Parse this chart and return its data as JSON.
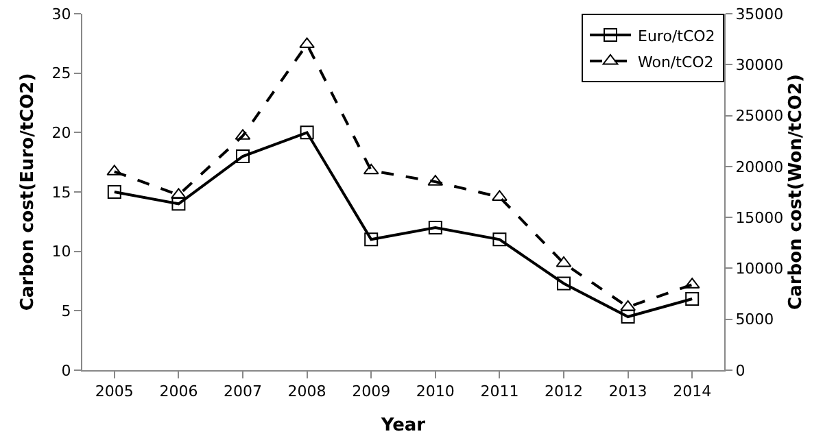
{
  "chart_data": {
    "type": "line",
    "xlabel": "Year",
    "ylabel": "Carbon cost(Euro/tCO2)",
    "y2label": "Carbon cost(Won/tCO2)",
    "categories": [
      "2005",
      "2006",
      "2007",
      "2008",
      "2009",
      "2010",
      "2011",
      "2012",
      "2013",
      "2014"
    ],
    "series": [
      {
        "name": "Euro/tCO2",
        "color": "#000000",
        "marker": "square",
        "line_style": "solid",
        "values": [
          15,
          14,
          18,
          20,
          11,
          12,
          11,
          7.3,
          4.5,
          6
        ]
      },
      {
        "name": "Won/tCO2",
        "color": "#000000",
        "marker": "triangle",
        "line_style": "dashed",
        "axis": "y2",
        "values": [
          19500,
          17200,
          23000,
          32000,
          19600,
          18500,
          17000,
          10500,
          6200,
          8400
        ]
      }
    ],
    "ylim": [
      0,
      30
    ],
    "yticks": [
      0,
      5,
      10,
      15,
      20,
      25,
      30
    ],
    "y2lim": [
      0,
      35000
    ],
    "y2ticks": [
      0,
      5000,
      10000,
      15000,
      20000,
      25000,
      30000,
      35000
    ],
    "grid": false,
    "legend": "top right"
  }
}
